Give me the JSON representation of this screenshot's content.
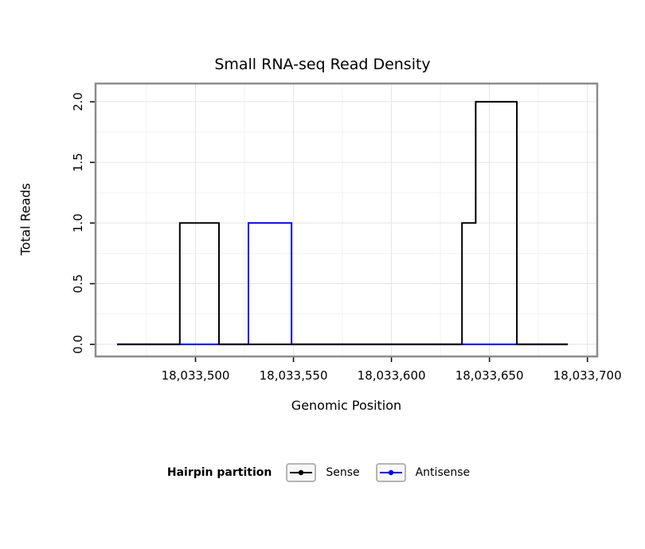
{
  "title": "Small RNA-seq Read Density",
  "chart_data": {
    "type": "line",
    "step": true,
    "title": "Small RNA-seq Read Density",
    "xlabel": "Genomic Position",
    "ylabel": "Total Reads",
    "xlim": [
      18033449,
      18033705
    ],
    "ylim": [
      -0.1,
      2.15
    ],
    "x_ticks": [
      18033500,
      18033550,
      18033600,
      18033650,
      18033700
    ],
    "x_tick_labels": [
      "18,033,500",
      "18,033,550",
      "18,033,600",
      "18,033,650",
      "18,033,700"
    ],
    "x_minor_ticks": [
      18033475,
      18033525,
      18033575,
      18033625,
      18033675
    ],
    "y_ticks": [
      0,
      0.5,
      1,
      1.5,
      2
    ],
    "y_tick_labels": [
      "0.0",
      "0.5",
      "1.0",
      "1.5",
      "2.0"
    ],
    "y_minor_ticks": [
      0.25,
      0.75,
      1.25,
      1.75
    ],
    "grid": true,
    "legend_title": "Hairpin partition",
    "legend_position": "bottom",
    "series": [
      {
        "name": "Sense",
        "color": "#000000",
        "points": [
          [
            18033460,
            0
          ],
          [
            18033492,
            0
          ],
          [
            18033492,
            1
          ],
          [
            18033512,
            1
          ],
          [
            18033512,
            0
          ],
          [
            18033636,
            0
          ],
          [
            18033636,
            1
          ],
          [
            18033643,
            1
          ],
          [
            18033643,
            2
          ],
          [
            18033664,
            2
          ],
          [
            18033664,
            0
          ],
          [
            18033690,
            0
          ]
        ]
      },
      {
        "name": "Antisense",
        "color": "#0000EE",
        "points": [
          [
            18033460,
            0
          ],
          [
            18033527,
            0
          ],
          [
            18033527,
            1
          ],
          [
            18033549,
            1
          ],
          [
            18033549,
            0
          ],
          [
            18033690,
            0
          ]
        ]
      }
    ]
  },
  "colors": {
    "panel_border": "#8c8c8c",
    "grid_major": "#e4e4e4",
    "grid_minor": "#f2f2f2",
    "axis": "#000000",
    "background": "#ffffff"
  }
}
